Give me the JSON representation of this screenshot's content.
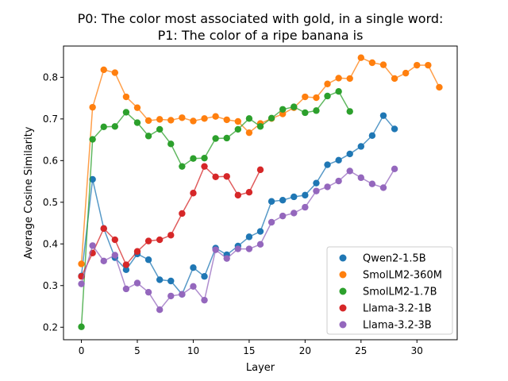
{
  "chart_data": {
    "type": "line",
    "title_lines": [
      "P0: The color most associated with gold, in a single word:",
      "P1: The color of a ripe banana is"
    ],
    "xlabel": "Layer",
    "ylabel": "Average Cosine Similarity",
    "xlim": [
      -1.6,
      33.6
    ],
    "ylim": [
      0.17,
      0.875
    ],
    "xticks": [
      0,
      5,
      10,
      15,
      20,
      25,
      30
    ],
    "yticks": [
      0.2,
      0.3,
      0.4,
      0.5,
      0.6,
      0.7,
      0.8
    ],
    "xtick_labels": [
      "0",
      "5",
      "10",
      "15",
      "20",
      "25",
      "30"
    ],
    "ytick_labels": [
      "0.2",
      "0.3",
      "0.4",
      "0.5",
      "0.6",
      "0.7",
      "0.8"
    ],
    "grid": false,
    "legend_position": "lower-right",
    "series": [
      {
        "name": "Qwen2-1.5B",
        "color": "#1f77b4",
        "x": [
          0,
          1,
          2,
          3,
          4,
          5,
          6,
          7,
          8,
          9,
          10,
          11,
          12,
          13,
          14,
          15,
          16,
          17,
          18,
          19,
          20,
          21,
          22,
          23,
          24,
          25,
          26,
          27,
          28
        ],
        "values": [
          0.323,
          0.555,
          0.437,
          0.367,
          0.338,
          0.376,
          0.362,
          0.314,
          0.311,
          0.279,
          0.343,
          0.322,
          0.39,
          0.374,
          0.395,
          0.417,
          0.43,
          0.502,
          0.505,
          0.513,
          0.517,
          0.546,
          0.59,
          0.601,
          0.616,
          0.634,
          0.66,
          0.708,
          0.676
        ]
      },
      {
        "name": "SmolLM2-360M",
        "color": "#ff7f0e",
        "x": [
          0,
          1,
          2,
          3,
          4,
          5,
          6,
          7,
          8,
          9,
          10,
          11,
          12,
          13,
          14,
          15,
          16,
          17,
          18,
          19,
          20,
          21,
          22,
          23,
          24,
          25,
          26,
          27,
          28,
          29,
          30,
          31,
          32
        ],
        "values": [
          0.352,
          0.728,
          0.818,
          0.811,
          0.753,
          0.727,
          0.696,
          0.699,
          0.697,
          0.703,
          0.695,
          0.701,
          0.706,
          0.698,
          0.694,
          0.667,
          0.689,
          0.701,
          0.712,
          0.727,
          0.753,
          0.751,
          0.784,
          0.798,
          0.797,
          0.847,
          0.835,
          0.83,
          0.797,
          0.81,
          0.829,
          0.829,
          0.776
        ]
      },
      {
        "name": "SmolLM2-1.7B",
        "color": "#2ca02c",
        "x": [
          0,
          1,
          2,
          3,
          4,
          5,
          6,
          7,
          8,
          9,
          10,
          11,
          12,
          13,
          14,
          15,
          16,
          17,
          18,
          19,
          20,
          21,
          22,
          23,
          24
        ],
        "values": [
          0.201,
          0.651,
          0.681,
          0.682,
          0.716,
          0.691,
          0.659,
          0.675,
          0.64,
          0.586,
          0.605,
          0.606,
          0.653,
          0.654,
          0.675,
          0.701,
          0.682,
          0.702,
          0.723,
          0.729,
          0.715,
          0.72,
          0.755,
          0.766,
          0.718
        ]
      },
      {
        "name": "Llama-3.2-1B",
        "color": "#d62728",
        "x": [
          0,
          1,
          2,
          3,
          4,
          5,
          6,
          7,
          8,
          9,
          10,
          11,
          12,
          13,
          14,
          15,
          16
        ],
        "values": [
          0.322,
          0.378,
          0.437,
          0.41,
          0.35,
          0.382,
          0.407,
          0.41,
          0.421,
          0.473,
          0.522,
          0.586,
          0.561,
          0.562,
          0.517,
          0.524,
          0.578
        ]
      },
      {
        "name": "Llama-3.2-3B",
        "color": "#9467bd",
        "x": [
          0,
          1,
          2,
          3,
          4,
          5,
          6,
          7,
          8,
          9,
          10,
          11,
          12,
          13,
          14,
          15,
          16,
          17,
          18,
          19,
          20,
          21,
          22,
          23,
          24,
          25,
          26,
          27,
          28
        ],
        "values": [
          0.304,
          0.396,
          0.359,
          0.373,
          0.292,
          0.306,
          0.284,
          0.242,
          0.275,
          0.279,
          0.298,
          0.265,
          0.386,
          0.365,
          0.388,
          0.388,
          0.399,
          0.452,
          0.467,
          0.474,
          0.488,
          0.527,
          0.537,
          0.551,
          0.575,
          0.559,
          0.544,
          0.535,
          0.58
        ]
      }
    ]
  }
}
